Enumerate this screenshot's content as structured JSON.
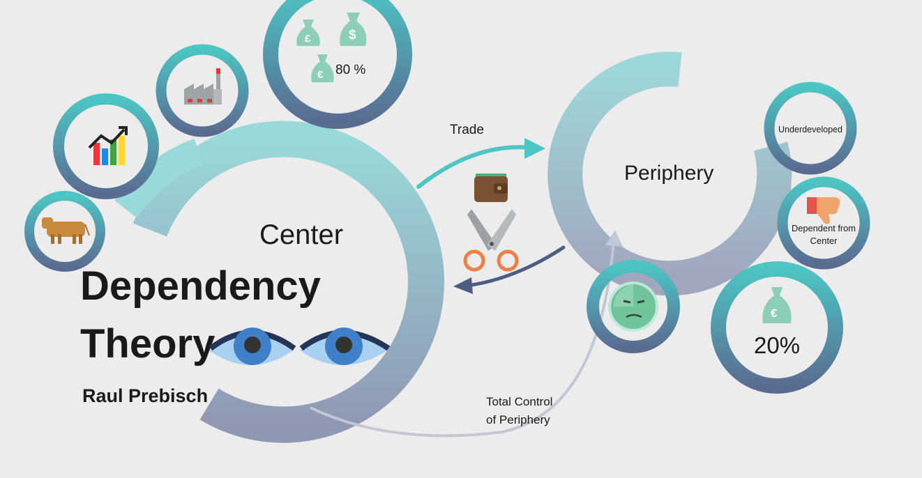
{
  "title": {
    "line1": "Dependency",
    "line2": "Theory"
  },
  "author": "Raul Prebisch",
  "center_label": "Center",
  "periphery_label": "Periphery",
  "arrows": {
    "trade": "Trade",
    "control_line1": "Total Control",
    "control_line2": "of Periphery"
  },
  "center_share": "80 %",
  "periphery_share": "20%",
  "periphery_traits": {
    "underdeveloped": "Underdeveloped",
    "dependent_line1": "Dependent from",
    "dependent_line2": "Center"
  },
  "currency_symbols": {
    "pound": "£",
    "dollar": "$",
    "euro": "€"
  },
  "icons": [
    "cow-icon",
    "bar-chart-growth-icon",
    "factory-icon",
    "money-bags-icon",
    "wallet-icon",
    "scissors-icon",
    "sad-face-icon",
    "thumbs-down-icon",
    "euro-bag-icon",
    "eyes-icon"
  ],
  "colors": {
    "teal": "#4cc5c4",
    "slate": "#5a6b92",
    "bag": "#8ccfb6",
    "background": "#ececec"
  }
}
